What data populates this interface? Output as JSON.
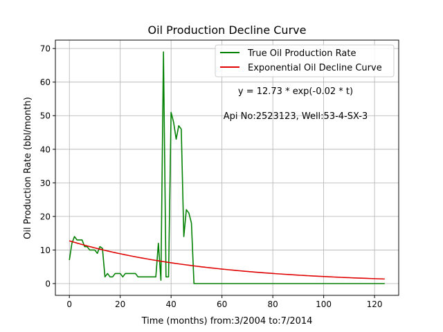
{
  "chart_data": {
    "type": "line",
    "title": "Oil Production Decline Curve",
    "xlabel": "Time (months) from:3/2004 to:7/2014",
    "ylabel": "Oil Production Rate (bbl/month)",
    "xlim": [
      -5.5,
      129.5
    ],
    "ylim": [
      -3.5,
      72.5
    ],
    "xticks": [
      0,
      20,
      40,
      60,
      80,
      100,
      120
    ],
    "yticks": [
      0,
      10,
      20,
      30,
      40,
      50,
      60,
      70
    ],
    "grid": true,
    "legend_position": "upper-right",
    "series": [
      {
        "name": "True Oil Production Rate",
        "color": "#008000",
        "x": [
          0,
          1,
          2,
          3,
          4,
          5,
          6,
          7,
          8,
          9,
          10,
          11,
          12,
          13,
          14,
          15,
          16,
          17,
          18,
          19,
          20,
          21,
          22,
          23,
          24,
          25,
          26,
          27,
          28,
          29,
          30,
          31,
          32,
          33,
          34,
          35,
          36,
          37,
          38,
          39,
          40,
          41,
          42,
          43,
          44,
          45,
          46,
          47,
          48,
          49,
          50,
          124
        ],
        "y": [
          7,
          12,
          14,
          13,
          13,
          13,
          11,
          11,
          10,
          10,
          10,
          9,
          11,
          10.5,
          2,
          3,
          2,
          2,
          3,
          3,
          3,
          2,
          3,
          3,
          3,
          3,
          3,
          2,
          2,
          2,
          2,
          2,
          2,
          2,
          2,
          12,
          1,
          69,
          2,
          2,
          51,
          48,
          43,
          47,
          46,
          14,
          22,
          21,
          18,
          0,
          0,
          0
        ]
      },
      {
        "name": "Exponential Oil Decline Curve",
        "color": "#e00000",
        "formula": {
          "a": 12.73,
          "b": -0.018,
          "x_start": 0,
          "x_end": 124
        }
      }
    ],
    "annotations": [
      "y = 12.73 * exp(-0.02 * t)",
      "Api No:2523123, Well:53-4-SX-3"
    ]
  }
}
